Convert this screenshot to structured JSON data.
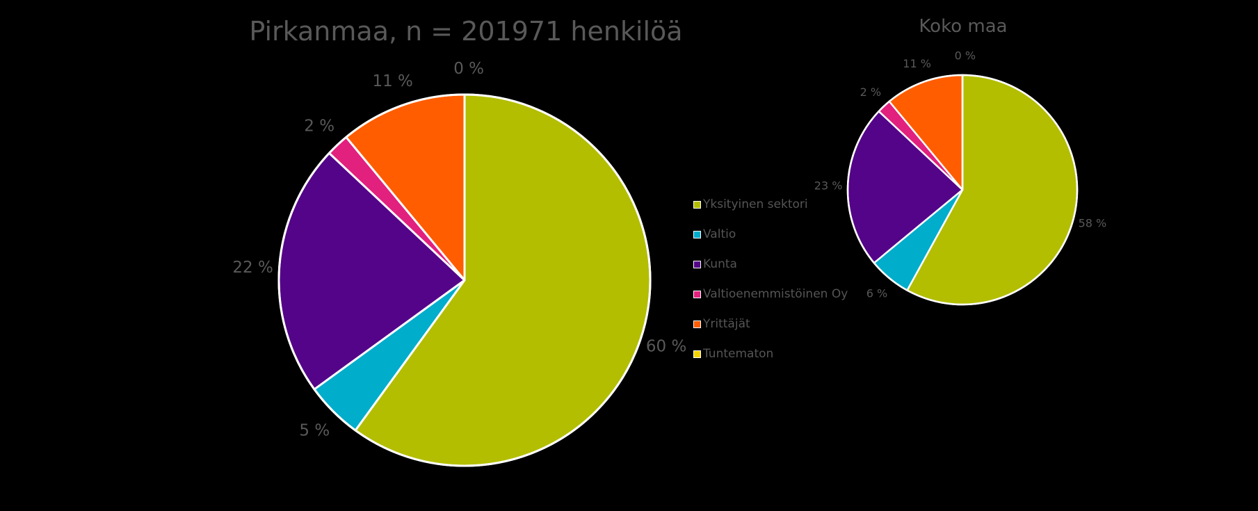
{
  "legend": {
    "items": [
      {
        "label": "Yksityinen sektori",
        "color": "#b3be00"
      },
      {
        "label": "Valtio",
        "color": "#00adcb"
      },
      {
        "label": "Kunta",
        "color": "#540488"
      },
      {
        "label": "Valtioenemmistöinen Oy",
        "color": "#e2207e"
      },
      {
        "label": "Yrittäjät",
        "color": "#ff5d00"
      },
      {
        "label": "Tuntematon",
        "color": "#f2d200"
      }
    ]
  },
  "chart_data": [
    {
      "type": "pie",
      "title": "Pirkanmaa, n = 201971 henkilöä",
      "categories": [
        "Yksityinen sektori",
        "Valtio",
        "Kunta",
        "Valtioenemmistöinen Oy",
        "Yrittäjät",
        "Tuntematon"
      ],
      "values": [
        60,
        5,
        22,
        2,
        11,
        0
      ],
      "data_labels": [
        "60 %",
        "5 %",
        "22 %",
        "2 %",
        "11 %",
        "0 %"
      ],
      "colors": [
        "#b3be00",
        "#00adcb",
        "#540488",
        "#e2207e",
        "#ff5d00",
        "#f2d200"
      ],
      "legend_position": "right"
    },
    {
      "type": "pie",
      "title": "Koko maa",
      "categories": [
        "Yksityinen sektori",
        "Valtio",
        "Kunta",
        "Valtioenemmistöinen Oy",
        "Yrittäjät",
        "Tuntematon"
      ],
      "values": [
        58,
        6,
        23,
        2,
        11,
        0
      ],
      "data_labels": [
        "58 %",
        "6 %",
        "23 %",
        "2 %",
        "11 %",
        "0 %"
      ],
      "colors": [
        "#b3be00",
        "#00adcb",
        "#540488",
        "#e2207e",
        "#ff5d00",
        "#f2d200"
      ]
    }
  ]
}
